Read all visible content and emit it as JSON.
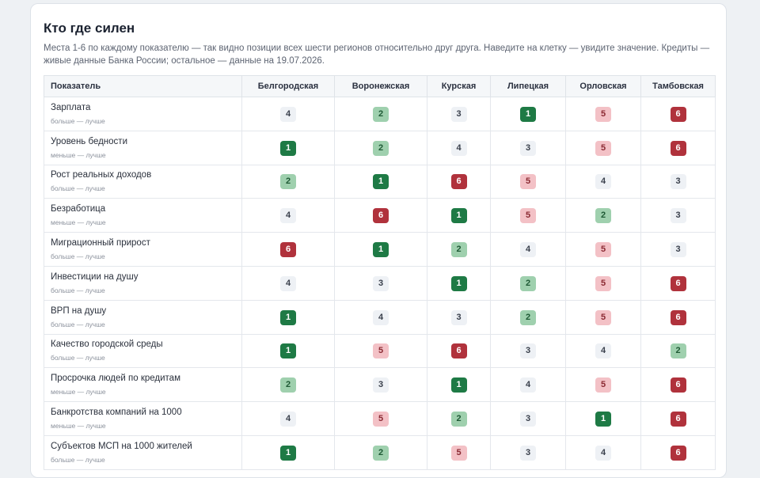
{
  "title": "Кто где силен",
  "subtitle": "Места 1-6 по каждому показателю — так видно позиции всех шести регионов относительно друг друга. Наведите на клетку — увидите значение. Кредиты — живые данные Банка России; остальное — данные на 19.07.2026.",
  "table": {
    "metric_header": "Показатель",
    "regions": [
      "Белгородская",
      "Воронежская",
      "Курская",
      "Липецкая",
      "Орловская",
      "Тамбовская"
    ],
    "rows": [
      {
        "name": "Зарплата",
        "hint": "больше — лучше",
        "ranks": [
          "4",
          "2",
          "3",
          "1",
          "5",
          "6"
        ]
      },
      {
        "name": "Уровень бедности",
        "hint": "меньше — лучше",
        "ranks": [
          "1",
          "2",
          "4",
          "3",
          "5",
          "6"
        ]
      },
      {
        "name": "Рост реальных доходов",
        "hint": "больше — лучше",
        "ranks": [
          "2",
          "1",
          "6",
          "5",
          "4",
          "3"
        ]
      },
      {
        "name": "Безработица",
        "hint": "меньше — лучше",
        "ranks": [
          "4",
          "6",
          "1",
          "5",
          "2",
          "3"
        ]
      },
      {
        "name": "Миграционный прирост",
        "hint": "больше — лучше",
        "ranks": [
          "6",
          "1",
          "2",
          "4",
          "5",
          "3"
        ]
      },
      {
        "name": "Инвестиции на душу",
        "hint": "больше — лучше",
        "ranks": [
          "4",
          "3",
          "1",
          "2",
          "5",
          "6"
        ]
      },
      {
        "name": "ВРП на душу",
        "hint": "больше — лучше",
        "ranks": [
          "1",
          "4",
          "3",
          "2",
          "5",
          "6"
        ]
      },
      {
        "name": "Качество городской среды",
        "hint": "больше — лучше",
        "ranks": [
          "1",
          "5",
          "6",
          "3",
          "4",
          "2"
        ]
      },
      {
        "name": "Просрочка людей по кредитам",
        "hint": "меньше — лучше",
        "ranks": [
          "2",
          "3",
          "1",
          "4",
          "5",
          "6"
        ]
      },
      {
        "name": "Банкротства компаний на 1000",
        "hint": "меньше — лучше",
        "ranks": [
          "4",
          "5",
          "2",
          "3",
          "1",
          "6"
        ]
      },
      {
        "name": "Субъектов МСП на 1000 жителей",
        "hint": "больше — лучше",
        "ranks": [
          "1",
          "2",
          "5",
          "3",
          "4",
          "6"
        ]
      }
    ]
  },
  "colors": {
    "rank_1": "#1e7a45",
    "rank_2": "#9fd0ae",
    "rank_3_4": "#eef1f5",
    "rank_5": "#f3c1c6",
    "rank_6": "#b0323c"
  }
}
